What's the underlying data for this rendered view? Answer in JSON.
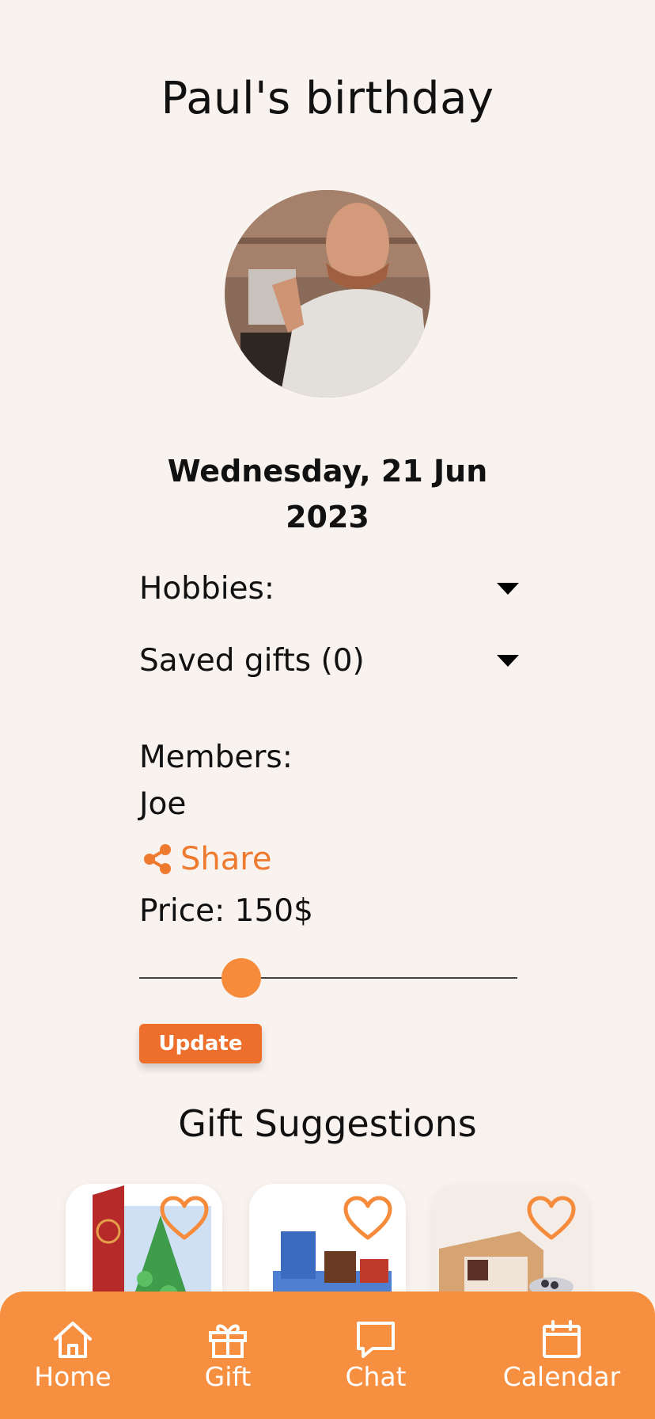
{
  "event": {
    "title": "Paul's birthday",
    "date": "Wednesday, 21 Jun 2023"
  },
  "details": {
    "hobbies_label": "Hobbies:",
    "saved_gifts_label": "Saved gifts (0)",
    "members_label": "Members:",
    "members": [
      "Joe"
    ],
    "share_label": "Share",
    "price_label": "Price: 150$",
    "price_slider_fraction": 0.27,
    "update_label": "Update"
  },
  "suggestions": {
    "title": "Gift Suggestions"
  },
  "nav": {
    "home": "Home",
    "gift": "Gift",
    "chat": "Chat",
    "calendar": "Calendar"
  },
  "colors": {
    "accent": "#f68f40",
    "button": "#ee6f2c",
    "background": "#f9f3f0"
  },
  "icons": [
    "chevron-down-icon",
    "share-icon",
    "heart-icon",
    "home-icon",
    "gift-icon",
    "chat-icon",
    "calendar-icon"
  ]
}
